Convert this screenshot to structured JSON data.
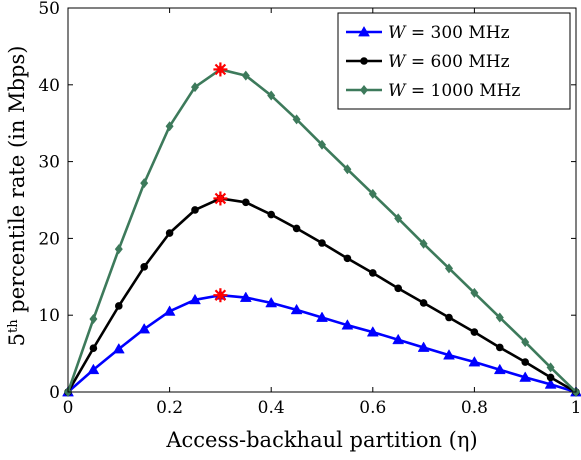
{
  "chart_data": {
    "type": "line",
    "title": "",
    "xlabel": "Access-backhaul partition (η)",
    "ylabel_base": "5",
    "ylabel_sup": "th",
    "ylabel_rest": " percentile rate (in Mbps)",
    "xlim": [
      0,
      1
    ],
    "ylim": [
      0,
      50
    ],
    "x_ticks": [
      0,
      0.2,
      0.4,
      0.6,
      0.8,
      1
    ],
    "x_tick_labels": [
      "0",
      "0.2",
      "0.4",
      "0.6",
      "0.8",
      "1"
    ],
    "y_ticks": [
      0,
      10,
      20,
      30,
      40,
      50
    ],
    "y_tick_labels": [
      "0",
      "10",
      "20",
      "30",
      "40",
      "50"
    ],
    "grid": false,
    "legend_position": "top-right",
    "x": [
      0,
      0.05,
      0.1,
      0.15,
      0.2,
      0.25,
      0.3,
      0.35,
      0.4,
      0.45,
      0.5,
      0.55,
      0.6,
      0.65,
      0.7,
      0.75,
      0.8,
      0.85,
      0.9,
      0.95,
      1.0
    ],
    "series": [
      {
        "name": "W = 300 MHz",
        "legend_italic": "W",
        "legend_rest": " = 300 MHz",
        "color": "#0000ff",
        "marker": "triangle",
        "values": [
          0,
          2.9,
          5.6,
          8.2,
          10.5,
          12.0,
          12.6,
          12.3,
          11.6,
          10.7,
          9.7,
          8.7,
          7.8,
          6.8,
          5.8,
          4.8,
          3.9,
          2.9,
          1.9,
          1.0,
          0
        ]
      },
      {
        "name": "W = 600 MHz",
        "legend_italic": "W",
        "legend_rest": " = 600 MHz",
        "color": "#000000",
        "marker": "circle",
        "values": [
          0,
          5.7,
          11.2,
          16.3,
          20.7,
          23.7,
          25.2,
          24.7,
          23.1,
          21.3,
          19.4,
          17.4,
          15.5,
          13.5,
          11.6,
          9.7,
          7.8,
          5.8,
          3.9,
          1.9,
          0
        ]
      },
      {
        "name": "W = 1000 MHz",
        "legend_italic": "W",
        "legend_rest": " = 1000 MHz",
        "color": "#3d7a5b",
        "marker": "diamond",
        "values": [
          0,
          9.5,
          18.6,
          27.2,
          34.6,
          39.7,
          42.0,
          41.2,
          38.6,
          35.5,
          32.2,
          29.0,
          25.8,
          22.6,
          19.3,
          16.1,
          12.9,
          9.7,
          6.5,
          3.2,
          0
        ]
      }
    ],
    "peak_markers": [
      {
        "x": 0.3,
        "y": 12.6,
        "color": "#ff0000"
      },
      {
        "x": 0.3,
        "y": 25.2,
        "color": "#ff0000"
      },
      {
        "x": 0.3,
        "y": 42.0,
        "color": "#ff0000"
      }
    ]
  }
}
